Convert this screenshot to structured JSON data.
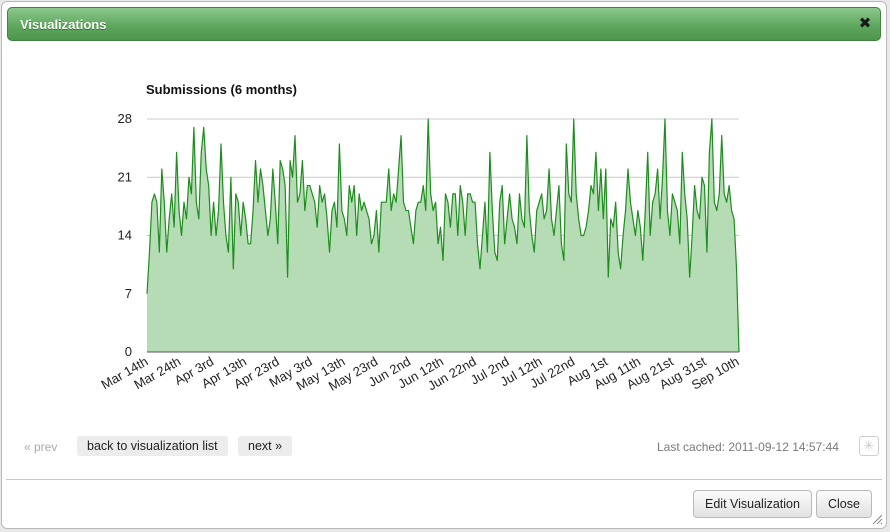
{
  "dialog": {
    "title": "Visualizations",
    "close_icon": "close-x-icon"
  },
  "chart_data": {
    "type": "area",
    "title": "Submissions (6 months)",
    "xlabel": "",
    "ylabel": "",
    "ylim": [
      0,
      28
    ],
    "yticks": [
      "0",
      "7",
      "14",
      "21",
      "28"
    ],
    "xticks": [
      "Mar 14th",
      "Mar 24th",
      "Apr 3rd",
      "Apr 13th",
      "Apr 23rd",
      "May 3rd",
      "May 13th",
      "May 23rd",
      "Jun 2nd",
      "Jun 12th",
      "Jun 22nd",
      "Jul 2nd",
      "Jul 12th",
      "Jul 22nd",
      "Aug 1st",
      "Aug 11th",
      "Aug 21st",
      "Aug 31st",
      "Sep 10th"
    ],
    "grid": true,
    "fill_color": "#b5dcb5",
    "line_color": "#1e8c1e",
    "series": [
      {
        "values": [
          7,
          12,
          18,
          19,
          18,
          12,
          22,
          18,
          12,
          16,
          19,
          15,
          24,
          17,
          14,
          18,
          16,
          21,
          19,
          27,
          18,
          16,
          24,
          27,
          22,
          20,
          14,
          18,
          14,
          17,
          25,
          18,
          14,
          12,
          21,
          10,
          19,
          18,
          14,
          18,
          16,
          13,
          13,
          17,
          23,
          18,
          22,
          20,
          17,
          14,
          16,
          22,
          18,
          13,
          23,
          22,
          20,
          9,
          23,
          21,
          26,
          18,
          19,
          23,
          17,
          20,
          20,
          19,
          18,
          15,
          20,
          18,
          19,
          16,
          12,
          17,
          18,
          15,
          25,
          17,
          16,
          14,
          20,
          18,
          20,
          14,
          19,
          17,
          18,
          17,
          16,
          13,
          14,
          17,
          12,
          18,
          18,
          18,
          22,
          17,
          19,
          18,
          22,
          26,
          18,
          17,
          17,
          15,
          13,
          17,
          18,
          18,
          20,
          17,
          28,
          19,
          17,
          18,
          13,
          15,
          11,
          19,
          18,
          15,
          19,
          19,
          14,
          20,
          18,
          14,
          19,
          19,
          18,
          18,
          13,
          10,
          14,
          18,
          12,
          24,
          17,
          12,
          11,
          18,
          20,
          13,
          16,
          19,
          16,
          15,
          13,
          19,
          16,
          15,
          26,
          17,
          14,
          12,
          17,
          18,
          19,
          16,
          17,
          22,
          16,
          14,
          17,
          20,
          13,
          11,
          25,
          19,
          18,
          28,
          19,
          16,
          14,
          14,
          15,
          17,
          20,
          19,
          24,
          17,
          22,
          16,
          22,
          9,
          16,
          15,
          18,
          12,
          10,
          14,
          17,
          22,
          18,
          16,
          14,
          17,
          15,
          11,
          17,
          24,
          14,
          18,
          19,
          22,
          16,
          21,
          28,
          17,
          14,
          19,
          18,
          17,
          13,
          24,
          19,
          16,
          9,
          14,
          20,
          17,
          16,
          21,
          20,
          12,
          24,
          28,
          18,
          17,
          19,
          26,
          19,
          18,
          20,
          17,
          16,
          10,
          0
        ]
      }
    ]
  },
  "nav": {
    "prev": "« prev",
    "back": "back to visualization list",
    "next": "next »",
    "last_cached": "Last cached: 2011-09-12 14:57:44",
    "refresh_icon": "refresh-spinner-icon"
  },
  "footer": {
    "edit": "Edit Visualization",
    "close": "Close"
  }
}
